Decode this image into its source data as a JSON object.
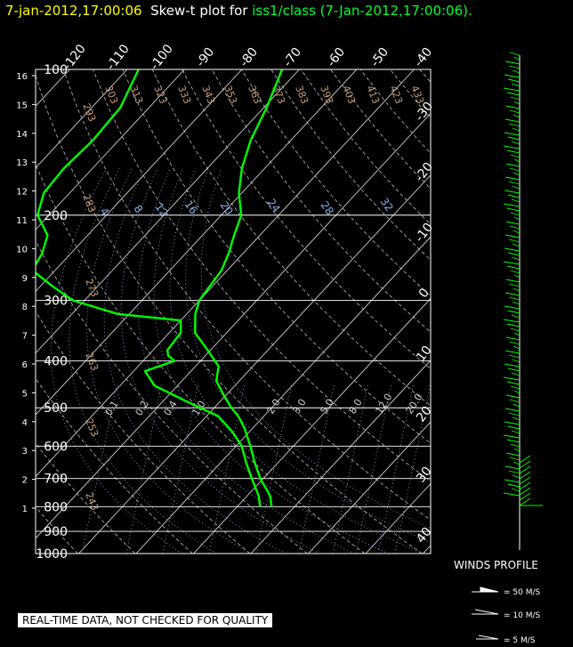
{
  "title": {
    "timestamp": "7-jan-2012,17:00:06",
    "label": "Skew-t plot for",
    "station": "iss1/class (7-Jan-2012,17:00:06)."
  },
  "winds": {
    "title": "WINDS PROFILE",
    "legend": [
      "= 50 M/S",
      "= 10 M/S",
      "= 5 M/S"
    ]
  },
  "disclaimer": "REAL-TIME DATA, NOT CHECKED FOR QUALITY",
  "colors": {
    "profile": "#00ff00",
    "title_timestamp": "#ffff00",
    "station": "#00ff33",
    "isotherm": "#ffffff",
    "dry_adiabat_labels": "#c8a078",
    "moist_labels": "#8ab0e8"
  },
  "chart_data": {
    "type": "line",
    "y_scale": "log-pressure",
    "ylim_hpa": [
      1000,
      100
    ],
    "pressure_levels": [
      100,
      200,
      300,
      400,
      500,
      600,
      700,
      800,
      900,
      1000
    ],
    "height_km_ticks": [
      "16",
      "15",
      "14",
      "13",
      "12",
      "11",
      "10",
      "9",
      "8",
      "7",
      "6",
      "5",
      "4",
      "3",
      "2",
      "1"
    ],
    "isotherm_labels": [
      "-120",
      "-110",
      "-100",
      "-90",
      "-80",
      "-70",
      "-60",
      "-50",
      "-40",
      "-30",
      "-20",
      "-10",
      "0",
      "10",
      "20",
      "30",
      "40"
    ],
    "dry_adiabat_labels": [
      "303",
      "313",
      "323",
      "333",
      "343",
      "353",
      "363",
      "373",
      "383",
      "393",
      "403",
      "413",
      "423",
      "433",
      "293",
      "283",
      "273",
      "263",
      "253",
      "243"
    ],
    "moist_adiabat_labels": [
      "4",
      "8",
      "12",
      "16",
      "20",
      "24",
      "28",
      "32"
    ],
    "mixing_ratio_labels": [
      "0.1",
      "0.2",
      "0.4",
      "1.0",
      "2.0",
      "3.0",
      "5.0",
      "8.0",
      "12.0",
      "20.0"
    ],
    "series": [
      {
        "pressure": [
          800,
          760,
          700,
          650,
          600,
          550,
          520,
          500,
          470,
          440,
          410,
          400,
          380,
          350,
          320,
          300,
          280,
          260,
          240,
          220,
          200,
          180,
          160,
          140,
          120,
          100
        ],
        "value": [
          -4.0,
          -6.0,
          -10.5,
          -14.0,
          -17.5,
          -21.5,
          -24.5,
          -27.0,
          -30.5,
          -34.0,
          -36.0,
          -37.5,
          -40.5,
          -45.5,
          -48.5,
          -50.0,
          -50.5,
          -51.0,
          -52.5,
          -54.5,
          -56.5,
          -60.5,
          -64.0,
          -67.0,
          -69.5,
          -73.0
        ]
      },
      {
        "pressure": [
          800,
          760,
          700,
          650,
          600,
          560,
          520,
          500,
          480,
          450,
          420,
          400,
          390,
          380,
          350,
          330,
          320,
          300,
          280,
          260,
          240,
          220,
          200,
          180,
          160,
          140,
          120,
          100
        ],
        "value": [
          -6.0,
          -8.0,
          -12.0,
          -15.5,
          -19.0,
          -23.0,
          -28.0,
          -32.5,
          -37.0,
          -44.0,
          -48.0,
          -44.5,
          -46.5,
          -47.5,
          -48.0,
          -50.0,
          -62.0,
          -72.0,
          -78.0,
          -84.0,
          -85.0,
          -87.0,
          -92.0,
          -94.5,
          -95.0,
          -94.5,
          -95.0,
          -98.0
        ]
      }
    ]
  }
}
